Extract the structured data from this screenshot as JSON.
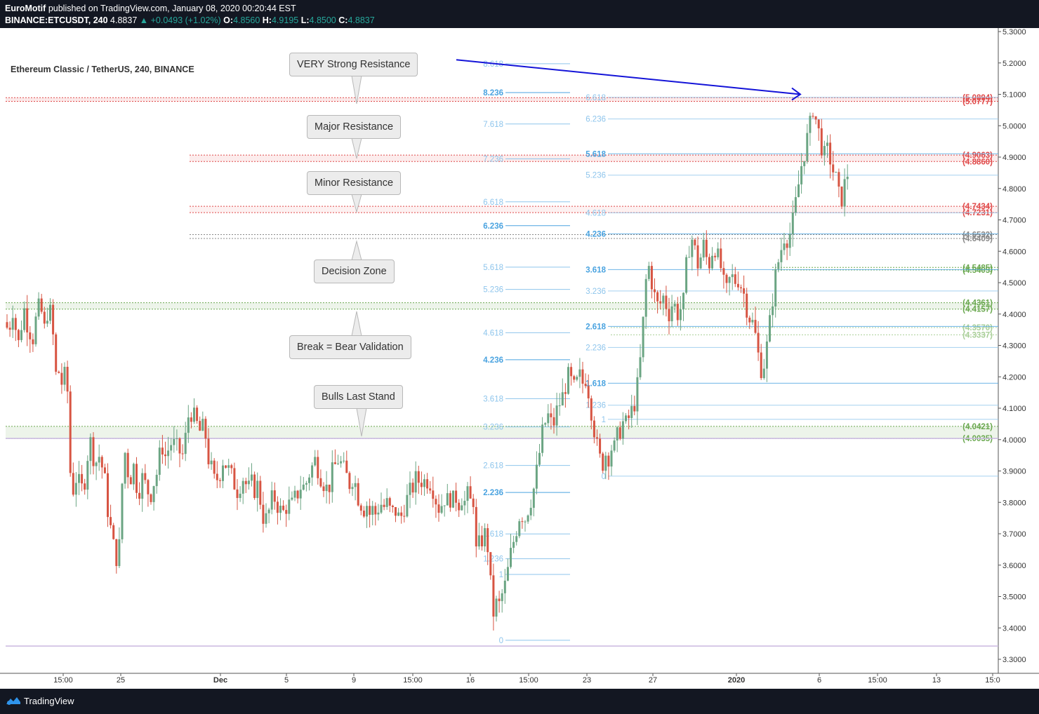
{
  "header": {
    "publisher": "EuroMotif",
    "published_text": "published on TradingView.com, January 08, 2020 00:20:44 EST",
    "symbol": "BINANCE:ETCUSDT, 240",
    "last_price": "4.8837",
    "change": "▲ +0.0493 (+1.02%)",
    "o_label": "O:",
    "o_value": "4.8560",
    "h_label": "H:",
    "h_value": "4.9195",
    "l_label": "L:",
    "l_value": "4.8500",
    "c_label": "C:",
    "c_value": "4.8837"
  },
  "legend": {
    "symbol_title": "Ethereum Classic / TetherUS, 240, BINANCE"
  },
  "footer": {
    "brand": "TradingView"
  },
  "colors": {
    "up": "#6ba583",
    "down": "#d75442",
    "resistance": "#e04848",
    "support": "#6aa84f",
    "decision": "#888888",
    "fib": "#8ec5ec",
    "arrow": "#1414d8"
  },
  "callouts": [
    {
      "label": "VERY Strong Resistance",
      "pointer": "down"
    },
    {
      "label": "Major Resistance",
      "pointer": "down"
    },
    {
      "label": "Minor Resistance",
      "pointer": "down"
    },
    {
      "label": "Decision Zone",
      "pointer": "up"
    },
    {
      "label": "Break = Bear Validation",
      "pointer": "up"
    },
    {
      "label": "Bulls Last Stand",
      "pointer": "down"
    }
  ],
  "chart_data": {
    "type": "candlestick",
    "title": "Ethereum Classic / TetherUS, 240, BINANCE",
    "y_axis": {
      "range": [
        3.28,
        5.32
      ],
      "ticks": [
        "5.3000",
        "5.2000",
        "5.1000",
        "5.0000",
        "4.9000",
        "4.8000",
        "4.7000",
        "4.6000",
        "4.5000",
        "4.4000",
        "4.3000",
        "4.2000",
        "4.1000",
        "4.0000",
        "3.9000",
        "3.8000",
        "3.7000",
        "3.6000",
        "3.5000",
        "3.4000",
        "3.3000"
      ]
    },
    "x_axis": {
      "ticks": [
        "15:00",
        "25",
        "Dec",
        "5",
        "9",
        "15:00",
        "16",
        "15:00",
        "23",
        "27",
        "2020",
        "6",
        "15:00",
        "13",
        "15:0"
      ],
      "bold_ticks": [
        "Dec",
        "2020"
      ]
    },
    "price_path": [
      [
        0,
        4.5
      ],
      [
        5,
        4.4
      ],
      [
        12,
        4.34
      ],
      [
        18,
        4.42
      ],
      [
        26,
        4.3
      ],
      [
        34,
        4.42
      ],
      [
        40,
        4.36
      ],
      [
        48,
        4.32
      ],
      [
        52,
        4.4
      ],
      [
        56,
        4.42
      ],
      [
        60,
        4.4
      ],
      [
        64,
        4.34
      ],
      [
        68,
        4.42
      ],
      [
        72,
        4.4
      ],
      [
        77,
        4.3
      ],
      [
        81,
        4.16
      ],
      [
        84,
        4.22
      ],
      [
        88,
        4.18
      ],
      [
        92,
        4.2
      ],
      [
        96,
        4.16
      ],
      [
        100,
        3.9
      ],
      [
        104,
        3.84
      ],
      [
        108,
        3.88
      ],
      [
        112,
        3.86
      ],
      [
        116,
        3.84
      ],
      [
        120,
        3.86
      ],
      [
        124,
        3.94
      ],
      [
        128,
        4.0
      ],
      [
        132,
        3.96
      ],
      [
        136,
        3.92
      ],
      [
        140,
        3.96
      ],
      [
        144,
        3.92
      ],
      [
        148,
        3.9
      ],
      [
        152,
        3.8
      ],
      [
        156,
        3.74
      ],
      [
        160,
        3.68
      ],
      [
        165,
        3.62
      ],
      [
        170,
        3.66
      ],
      [
        174,
        3.86
      ],
      [
        178,
        3.96
      ],
      [
        182,
        3.9
      ],
      [
        186,
        3.88
      ],
      [
        190,
        3.92
      ],
      [
        194,
        3.86
      ],
      [
        198,
        3.84
      ],
      [
        202,
        3.88
      ],
      [
        206,
        3.86
      ],
      [
        210,
        3.84
      ],
      [
        214,
        3.82
      ],
      [
        218,
        3.86
      ],
      [
        222,
        3.88
      ],
      [
        226,
        3.92
      ],
      [
        230,
        4.0
      ],
      [
        234,
        3.94
      ],
      [
        238,
        3.96
      ],
      [
        242,
        3.98
      ],
      [
        246,
        4.0
      ],
      [
        250,
        3.96
      ],
      [
        254,
        3.98
      ],
      [
        258,
        3.94
      ],
      [
        262,
        3.96
      ],
      [
        266,
        4.04
      ],
      [
        270,
        4.1
      ],
      [
        274,
        4.08
      ],
      [
        278,
        4.06
      ],
      [
        282,
        4.04
      ],
      [
        286,
        4.02
      ],
      [
        290,
        4.04
      ],
      [
        294,
        4.0
      ],
      [
        298,
        3.92
      ],
      [
        302,
        3.9
      ],
      [
        306,
        3.86
      ],
      [
        310,
        3.88
      ],
      [
        314,
        3.9
      ],
      [
        318,
        3.94
      ],
      [
        322,
        3.92
      ],
      [
        326,
        3.9
      ],
      [
        330,
        3.88
      ],
      [
        334,
        3.86
      ],
      [
        338,
        3.84
      ],
      [
        342,
        3.86
      ],
      [
        346,
        3.88
      ],
      [
        350,
        3.86
      ],
      [
        354,
        3.84
      ],
      [
        358,
        3.86
      ],
      [
        362,
        3.84
      ],
      [
        366,
        3.86
      ],
      [
        370,
        3.82
      ],
      [
        374,
        3.76
      ],
      [
        378,
        3.74
      ],
      [
        382,
        3.76
      ],
      [
        386,
        3.8
      ],
      [
        390,
        3.82
      ],
      [
        394,
        3.8
      ],
      [
        398,
        3.78
      ],
      [
        402,
        3.76
      ],
      [
        406,
        3.78
      ],
      [
        410,
        3.8
      ],
      [
        414,
        3.78
      ],
      [
        418,
        3.8
      ],
      [
        422,
        3.82
      ],
      [
        426,
        3.84
      ],
      [
        430,
        3.86
      ],
      [
        434,
        3.84
      ],
      [
        438,
        3.88
      ],
      [
        442,
        3.9
      ],
      [
        446,
        3.92
      ],
      [
        450,
        3.94
      ],
      [
        454,
        3.9
      ],
      [
        458,
        3.88
      ],
      [
        462,
        3.86
      ],
      [
        466,
        3.84
      ],
      [
        470,
        3.86
      ],
      [
        474,
        3.9
      ],
      [
        478,
        3.92
      ],
      [
        482,
        3.94
      ],
      [
        486,
        3.92
      ],
      [
        490,
        3.9
      ],
      [
        494,
        3.88
      ],
      [
        498,
        3.86
      ],
      [
        502,
        3.88
      ],
      [
        506,
        3.86
      ],
      [
        510,
        3.82
      ],
      [
        514,
        3.8
      ],
      [
        518,
        3.78
      ],
      [
        522,
        3.8
      ],
      [
        526,
        3.76
      ],
      [
        530,
        3.78
      ],
      [
        534,
        3.76
      ],
      [
        538,
        3.78
      ],
      [
        542,
        3.8
      ],
      [
        546,
        3.78
      ],
      [
        550,
        3.8
      ],
      [
        554,
        3.78
      ],
      [
        558,
        3.76
      ],
      [
        562,
        3.78
      ],
      [
        566,
        3.76
      ],
      [
        570,
        3.74
      ],
      [
        574,
        3.78
      ],
      [
        578,
        3.8
      ],
      [
        582,
        3.82
      ],
      [
        586,
        3.84
      ],
      [
        590,
        3.86
      ],
      [
        594,
        3.88
      ],
      [
        598,
        3.86
      ],
      [
        602,
        3.88
      ],
      [
        606,
        3.86
      ],
      [
        610,
        3.88
      ],
      [
        614,
        3.86
      ],
      [
        618,
        3.84
      ],
      [
        622,
        3.8
      ],
      [
        626,
        3.78
      ],
      [
        630,
        3.8
      ],
      [
        634,
        3.82
      ],
      [
        638,
        3.8
      ],
      [
        642,
        3.82
      ],
      [
        646,
        3.8
      ],
      [
        650,
        3.82
      ],
      [
        654,
        3.8
      ],
      [
        658,
        3.82
      ],
      [
        662,
        3.8
      ],
      [
        666,
        3.82
      ],
      [
        670,
        3.8
      ],
      [
        674,
        3.82
      ],
      [
        678,
        3.64
      ],
      [
        682,
        3.66
      ],
      [
        686,
        3.68
      ],
      [
        690,
        3.7
      ],
      [
        694,
        3.68
      ],
      [
        698,
        3.56
      ],
      [
        702,
        3.44
      ],
      [
        706,
        3.48
      ],
      [
        710,
        3.46
      ],
      [
        714,
        3.5
      ],
      [
        718,
        3.52
      ],
      [
        722,
        3.56
      ],
      [
        726,
        3.62
      ],
      [
        730,
        3.66
      ],
      [
        734,
        3.7
      ],
      [
        738,
        3.74
      ],
      [
        742,
        3.78
      ],
      [
        746,
        3.74
      ],
      [
        750,
        3.76
      ],
      [
        754,
        3.8
      ],
      [
        758,
        3.82
      ],
      [
        762,
        3.86
      ],
      [
        766,
        3.92
      ],
      [
        770,
        3.98
      ],
      [
        774,
        4.04
      ],
      [
        778,
        4.06
      ],
      [
        782,
        4.08
      ],
      [
        786,
        4.04
      ],
      [
        790,
        4.06
      ],
      [
        794,
        4.1
      ],
      [
        798,
        4.12
      ],
      [
        802,
        4.14
      ],
      [
        806,
        4.18
      ],
      [
        810,
        4.2
      ],
      [
        814,
        4.18
      ],
      [
        818,
        4.16
      ],
      [
        822,
        4.18
      ],
      [
        826,
        4.2
      ],
      [
        830,
        4.18
      ],
      [
        834,
        4.2
      ],
      [
        838,
        4.16
      ],
      [
        842,
        4.1
      ],
      [
        846,
        4.04
      ],
      [
        850,
        3.98
      ],
      [
        854,
        3.94
      ],
      [
        858,
        3.92
      ],
      [
        862,
        3.96
      ],
      [
        866,
        3.94
      ],
      [
        870,
        3.98
      ],
      [
        874,
        3.96
      ],
      [
        878,
        4.0
      ],
      [
        882,
        4.02
      ],
      [
        886,
        4.06
      ],
      [
        890,
        4.04
      ],
      [
        894,
        4.06
      ],
      [
        898,
        4.08
      ],
      [
        902,
        4.1
      ],
      [
        906,
        4.14
      ],
      [
        910,
        4.2
      ],
      [
        914,
        4.3
      ],
      [
        918,
        4.44
      ],
      [
        922,
        4.56
      ],
      [
        926,
        4.54
      ],
      [
        930,
        4.48
      ],
      [
        934,
        4.44
      ],
      [
        938,
        4.42
      ],
      [
        942,
        4.44
      ],
      [
        946,
        4.46
      ],
      [
        950,
        4.42
      ],
      [
        954,
        4.4
      ],
      [
        958,
        4.44
      ],
      [
        962,
        4.42
      ],
      [
        966,
        4.4
      ],
      [
        970,
        4.42
      ],
      [
        974,
        4.44
      ],
      [
        978,
        4.56
      ],
      [
        982,
        4.62
      ],
      [
        986,
        4.64
      ],
      [
        990,
        4.6
      ],
      [
        994,
        4.56
      ],
      [
        998,
        4.58
      ],
      [
        1002,
        4.62
      ],
      [
        1006,
        4.58
      ],
      [
        1010,
        4.56
      ],
      [
        1014,
        4.6
      ],
      [
        1018,
        4.62
      ],
      [
        1022,
        4.58
      ],
      [
        1026,
        4.56
      ],
      [
        1030,
        4.5
      ],
      [
        1034,
        4.46
      ],
      [
        1038,
        4.5
      ],
      [
        1042,
        4.52
      ],
      [
        1046,
        4.5
      ],
      [
        1050,
        4.52
      ],
      [
        1054,
        4.5
      ],
      [
        1058,
        4.48
      ],
      [
        1062,
        4.44
      ],
      [
        1066,
        4.4
      ],
      [
        1070,
        4.38
      ],
      [
        1074,
        4.36
      ],
      [
        1078,
        4.3
      ],
      [
        1082,
        4.24
      ],
      [
        1086,
        4.22
      ],
      [
        1090,
        4.26
      ],
      [
        1094,
        4.32
      ],
      [
        1098,
        4.4
      ],
      [
        1102,
        4.48
      ],
      [
        1106,
        4.54
      ],
      [
        1110,
        4.58
      ],
      [
        1114,
        4.62
      ],
      [
        1118,
        4.66
      ],
      [
        1122,
        4.64
      ],
      [
        1126,
        4.66
      ],
      [
        1130,
        4.7
      ],
      [
        1134,
        4.76
      ],
      [
        1138,
        4.82
      ],
      [
        1142,
        4.88
      ],
      [
        1146,
        4.92
      ],
      [
        1150,
        4.96
      ],
      [
        1154,
        5.0
      ],
      [
        1158,
        5.06
      ],
      [
        1162,
        5.02
      ],
      [
        1166,
        4.98
      ],
      [
        1170,
        4.94
      ],
      [
        1174,
        4.9
      ],
      [
        1178,
        4.92
      ],
      [
        1182,
        4.9
      ],
      [
        1186,
        4.86
      ],
      [
        1190,
        4.84
      ],
      [
        1194,
        4.78
      ],
      [
        1198,
        4.76
      ],
      [
        1202,
        4.8
      ],
      [
        1206,
        4.84
      ],
      [
        1212,
        4.88
      ]
    ],
    "horizontal_levels": [
      {
        "group": "resistance",
        "price": 5.0894,
        "label": "(5.0894)",
        "x_start": 8
      },
      {
        "group": "resistance",
        "price": 5.0777,
        "label": "(5.0777)",
        "x_start": 8
      },
      {
        "group": "resistance",
        "price": 4.9063,
        "label": "(4.9063)",
        "x_start": 270
      },
      {
        "group": "resistance",
        "price": 4.886,
        "label": "(4.8860)",
        "x_start": 270
      },
      {
        "group": "resistance",
        "price": 4.7434,
        "label": "(4.7434)",
        "x_start": 270
      },
      {
        "group": "resistance",
        "price": 4.7231,
        "label": "(4.7231)",
        "x_start": 270
      },
      {
        "group": "decision",
        "price": 4.6532,
        "label": "(4.6532)",
        "x_start": 270
      },
      {
        "group": "decision",
        "price": 4.6409,
        "label": "(4.6409)",
        "x_start": 270
      },
      {
        "group": "support",
        "price": 4.5485,
        "label": "(4.5485)",
        "x_start": 1100
      },
      {
        "group": "support",
        "price": 4.5405,
        "label": "(4.5405)",
        "x_start": 1100
      },
      {
        "group": "support",
        "price": 4.4361,
        "label": "(4.4361)",
        "x_start": 8
      },
      {
        "group": "support",
        "price": 4.4157,
        "label": "(4.4157)",
        "x_start": 8
      },
      {
        "group": "support-light",
        "price": 4.357,
        "label": "(4.3570)",
        "x_start": 870
      },
      {
        "group": "support-light",
        "price": 4.3337,
        "label": "(4.3337)",
        "x_start": 870
      },
      {
        "group": "support",
        "price": 4.0421,
        "label": "(4.0421)",
        "x_start": 8
      },
      {
        "group": "support",
        "price": 4.0035,
        "label": "(4.0035)",
        "x_start": 8
      }
    ],
    "fib_left": [
      {
        "label": "8.618",
        "price": 5.1975,
        "bold": false
      },
      {
        "label": "8.236",
        "price": 5.1055,
        "bold": true
      },
      {
        "label": "7.618",
        "price": 5.0055,
        "bold": false
      },
      {
        "label": "7.236",
        "price": 4.8945,
        "bold": false
      },
      {
        "label": "6.618",
        "price": 4.7575,
        "bold": false
      },
      {
        "label": "6.236",
        "price": 4.6815,
        "bold": true
      },
      {
        "label": "5.618",
        "price": 4.5495,
        "bold": false
      },
      {
        "label": "5.236",
        "price": 4.4785,
        "bold": false
      },
      {
        "label": "4.618",
        "price": 4.3405,
        "bold": false
      },
      {
        "label": "4.236",
        "price": 4.2545,
        "bold": true
      },
      {
        "label": "3.618",
        "price": 4.1305,
        "bold": false
      },
      {
        "label": "3.236",
        "price": 4.0405,
        "bold": false
      },
      {
        "label": "2.618",
        "price": 3.9175,
        "bold": false
      },
      {
        "label": "2.236",
        "price": 3.8315,
        "bold": true
      },
      {
        "label": "1.618",
        "price": 3.6995,
        "bold": false
      },
      {
        "label": "1.236",
        "price": 3.6205,
        "bold": false
      },
      {
        "label": "1",
        "price": 3.5705,
        "bold": false
      },
      {
        "label": "0",
        "price": 3.3605,
        "bold": false
      }
    ],
    "fib_right": [
      {
        "label": "6.618",
        "price": 5.0905,
        "bold": false
      },
      {
        "label": "6.236",
        "price": 5.0215,
        "bold": false
      },
      {
        "label": "5.618",
        "price": 4.9105,
        "bold": true
      },
      {
        "label": "5.236",
        "price": 4.8425,
        "bold": false
      },
      {
        "label": "4.618",
        "price": 4.7225,
        "bold": false
      },
      {
        "label": "4.236",
        "price": 4.6555,
        "bold": true
      },
      {
        "label": "3.618",
        "price": 4.5415,
        "bold": true
      },
      {
        "label": "3.236",
        "price": 4.4735,
        "bold": false
      },
      {
        "label": "2.618",
        "price": 4.3605,
        "bold": true
      },
      {
        "label": "2.236",
        "price": 4.2935,
        "bold": false
      },
      {
        "label": "1.618",
        "price": 4.1795,
        "bold": true
      },
      {
        "label": "1.236",
        "price": 4.1095,
        "bold": false
      },
      {
        "label": "1",
        "price": 4.0645,
        "bold": false
      },
      {
        "label": "0",
        "price": 3.8835,
        "bold": false
      }
    ],
    "arrow": {
      "from": [
        650,
        5.21
      ],
      "to": [
        1140,
        5.1
      ]
    },
    "bottom_reference_price": 3.3421
  }
}
